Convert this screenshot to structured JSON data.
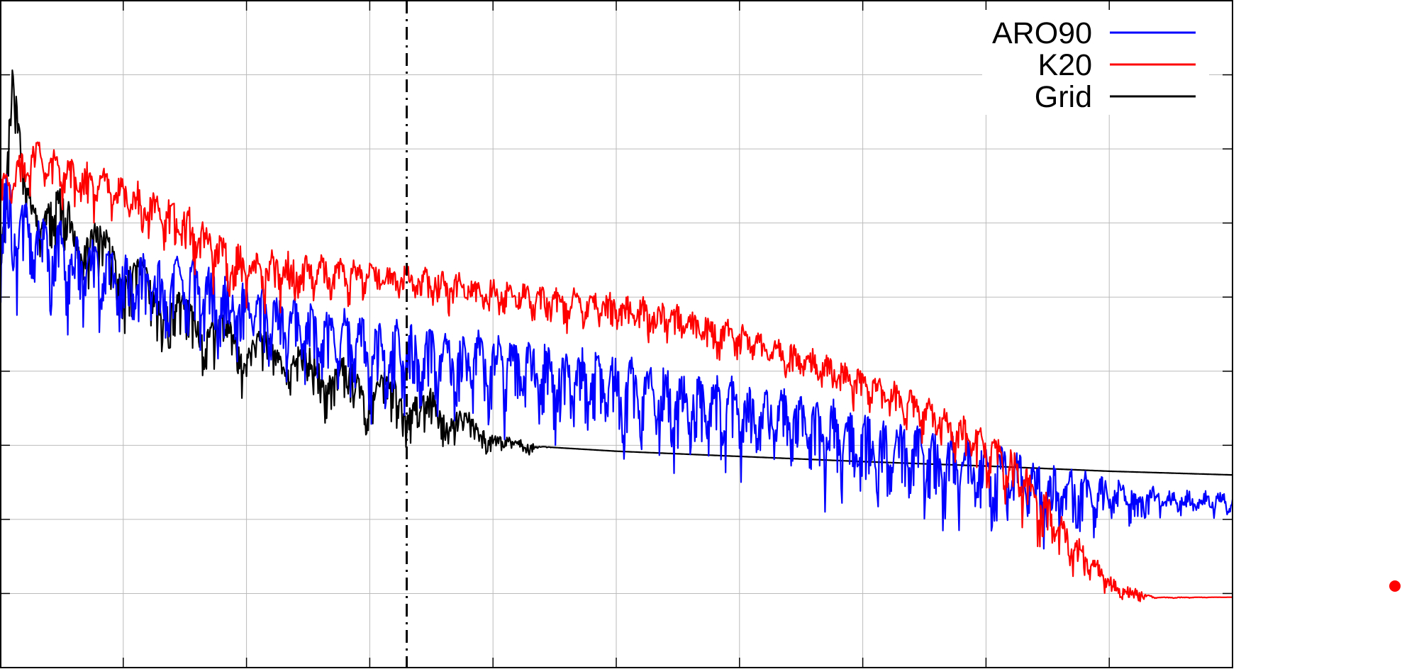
{
  "chart_data": {
    "type": "line",
    "title": "",
    "xlabel": "",
    "ylabel": "",
    "xlim": [
      0,
      10
    ],
    "ylim": [
      0,
      9
    ],
    "grid": true,
    "xticks": [
      1,
      2,
      3,
      4,
      5,
      6,
      7,
      8,
      9
    ],
    "yticks": [
      1,
      2,
      3,
      4,
      5,
      6,
      7,
      8
    ],
    "legend_position": "top-right",
    "vertical_line": {
      "x": 3.3,
      "style": "dash-dot",
      "color": "#000000"
    },
    "series": [
      {
        "name": "ARO90",
        "color": "#0000ff",
        "style": "oscillating spectrum",
        "envelope_x": [
          0.0,
          0.05,
          0.1,
          0.3,
          0.6,
          1.0,
          1.5,
          2.0,
          2.5,
          3.0,
          3.5,
          4.0,
          4.5,
          5.0,
          5.5,
          6.0,
          6.5,
          7.0,
          7.5,
          8.0,
          8.5,
          9.0,
          9.5,
          10.0
        ],
        "envelope_y": [
          6.3,
          6.8,
          6.4,
          6.2,
          5.9,
          5.6,
          5.5,
          5.2,
          4.9,
          4.7,
          4.6,
          4.5,
          4.35,
          4.2,
          4.0,
          3.85,
          3.7,
          3.45,
          3.25,
          3.0,
          2.75,
          2.5,
          2.35,
          2.3
        ],
        "dip_depth": [
          1.6,
          1.6,
          1.6,
          1.6,
          1.6,
          1.5,
          1.4,
          1.4,
          1.4,
          1.6,
          1.6,
          1.5,
          1.5,
          1.6,
          1.6,
          1.6,
          1.6,
          1.6,
          1.6,
          1.4,
          1.2,
          0.8,
          0.4,
          0.3
        ]
      },
      {
        "name": "K20",
        "color": "#ff0000",
        "style": "oscillating spectrum",
        "envelope_x": [
          0.0,
          0.1,
          0.3,
          0.5,
          1.0,
          1.5,
          2.0,
          2.5,
          3.0,
          3.5,
          4.0,
          4.5,
          5.0,
          5.5,
          6.0,
          6.5,
          7.0,
          7.5,
          8.0,
          8.3,
          8.5,
          8.8,
          8.95,
          9.1,
          9.4,
          10.0
        ],
        "envelope_y": [
          6.6,
          6.8,
          7.1,
          6.9,
          6.6,
          6.2,
          5.6,
          5.55,
          5.45,
          5.35,
          5.2,
          5.1,
          5.0,
          4.85,
          4.6,
          4.3,
          4.0,
          3.6,
          3.2,
          2.8,
          2.3,
          1.6,
          1.3,
          1.05,
          0.95,
          0.95
        ],
        "dip_depth": [
          0.9,
          0.9,
          0.9,
          0.9,
          0.9,
          0.9,
          0.9,
          0.8,
          0.6,
          0.6,
          0.6,
          0.6,
          0.6,
          0.6,
          0.6,
          0.6,
          0.6,
          0.7,
          0.9,
          1.0,
          1.0,
          0.6,
          0.3,
          0.1,
          0.02,
          0.0
        ]
      },
      {
        "name": "Grid",
        "color": "#000000",
        "style": "oscillating spectrum, smooth tail",
        "envelope_x": [
          0.0,
          0.05,
          0.1,
          0.2,
          0.5,
          1.0,
          1.5,
          2.0,
          2.5,
          3.0,
          3.3,
          3.5,
          3.7,
          3.9,
          4.1,
          4.3,
          4.5,
          5.0,
          6.0,
          7.0,
          8.0,
          9.0,
          10.0
        ],
        "envelope_y": [
          5.8,
          7.0,
          8.2,
          6.6,
          6.4,
          5.7,
          5.0,
          4.6,
          4.3,
          4.0,
          3.85,
          3.7,
          3.5,
          3.25,
          3.05,
          3.0,
          2.97,
          2.92,
          2.85,
          2.78,
          2.72,
          2.65,
          2.6
        ],
        "dip_depth": [
          1.2,
          1.2,
          1.2,
          1.3,
          1.4,
          1.3,
          1.2,
          1.1,
          1.0,
          1.0,
          1.0,
          0.9,
          0.7,
          0.4,
          0.15,
          0.06,
          0.0,
          0.0,
          0.0,
          0.0,
          0.0,
          0.0,
          0.0
        ]
      }
    ]
  },
  "annotations": {
    "dot_color": "#ff0000"
  }
}
